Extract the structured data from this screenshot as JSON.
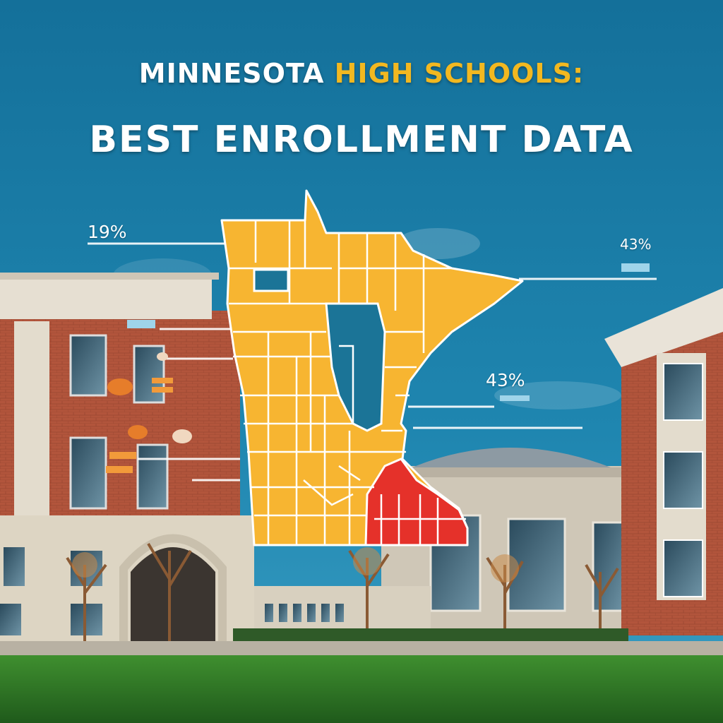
{
  "title": {
    "line1_part1": "MINNESOTA ",
    "line1_highlight": "HIGH SCHOOLS:",
    "line2": "BEST ENROLLMENT DATA"
  },
  "callouts": {
    "left": "19%",
    "right_top": "43%",
    "right_mid": "43%"
  },
  "colors": {
    "sky": "#1e7fa8",
    "map_fill": "#f7b531",
    "map_highlight": "#e5312a",
    "water": "#1b7497",
    "title_highlight": "#f2b820",
    "brick": "#b2553c",
    "lawn": "#3d8a2e"
  }
}
